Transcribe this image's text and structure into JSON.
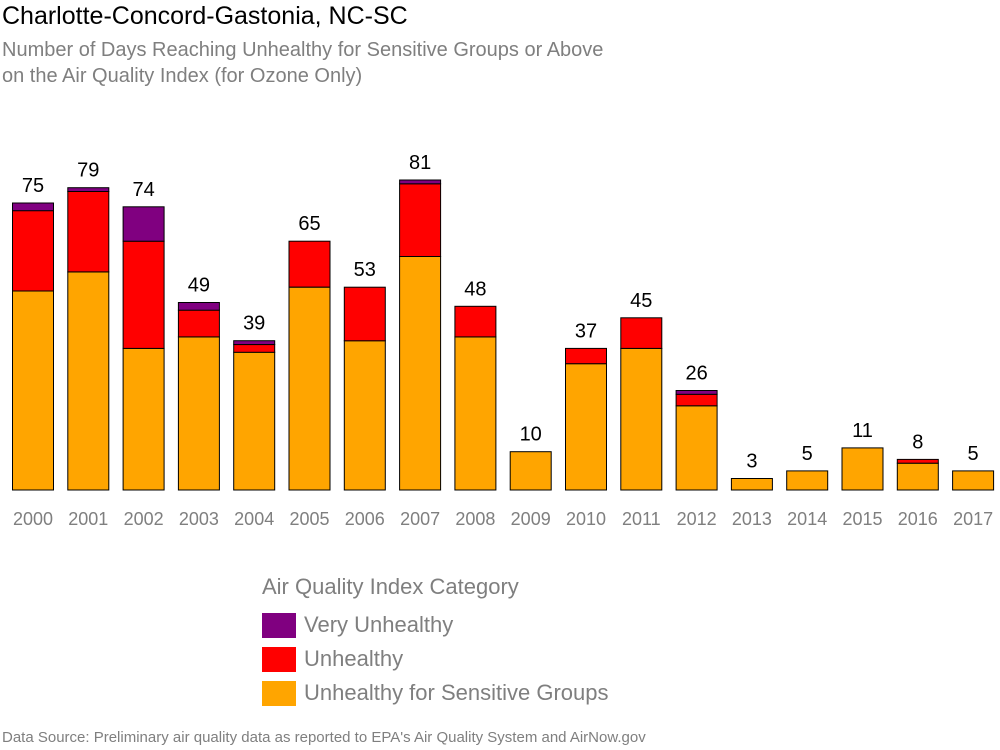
{
  "title": "Charlotte-Concord-Gastonia, NC-SC",
  "subtitle_lines": [
    "Number of Days Reaching Unhealthy for Sensitive Groups or Above",
    "on the Air Quality Index (for Ozone Only)"
  ],
  "source": "Data Source: Preliminary air quality data as reported to EPA's Air Quality System and AirNow.gov",
  "legend": {
    "title": "Air Quality Index Category",
    "items": [
      {
        "label": "Very Unhealthy",
        "color": "#800080"
      },
      {
        "label": "Unhealthy",
        "color": "#ff0000"
      },
      {
        "label": "Unhealthy for Sensitive Groups",
        "color": "#ffa500"
      }
    ]
  },
  "chart_data": {
    "type": "bar",
    "stacked": true,
    "categories": [
      "2000",
      "2001",
      "2002",
      "2003",
      "2004",
      "2005",
      "2006",
      "2007",
      "2008",
      "2009",
      "2010",
      "2011",
      "2012",
      "2013",
      "2014",
      "2015",
      "2016",
      "2017"
    ],
    "series": [
      {
        "name": "Unhealthy for Sensitive Groups",
        "color": "#ffa500",
        "values": [
          52,
          57,
          37,
          40,
          36,
          53,
          39,
          61,
          40,
          10,
          33,
          37,
          22,
          3,
          5,
          11,
          7,
          5
        ]
      },
      {
        "name": "Unhealthy",
        "color": "#ff0000",
        "values": [
          21,
          21,
          28,
          7,
          2,
          12,
          14,
          19,
          8,
          0,
          4,
          8,
          3,
          0,
          0,
          0,
          1,
          0
        ]
      },
      {
        "name": "Very Unhealthy",
        "color": "#800080",
        "values": [
          2,
          1,
          9,
          2,
          1,
          0,
          0,
          1,
          0,
          0,
          0,
          0,
          1,
          0,
          0,
          0,
          0,
          0
        ]
      }
    ],
    "totals": [
      75,
      79,
      74,
      49,
      39,
      65,
      53,
      81,
      48,
      10,
      37,
      45,
      26,
      3,
      5,
      11,
      8,
      5
    ],
    "ylim": [
      0,
      81
    ],
    "grid": false,
    "legend_position": "bottom"
  }
}
